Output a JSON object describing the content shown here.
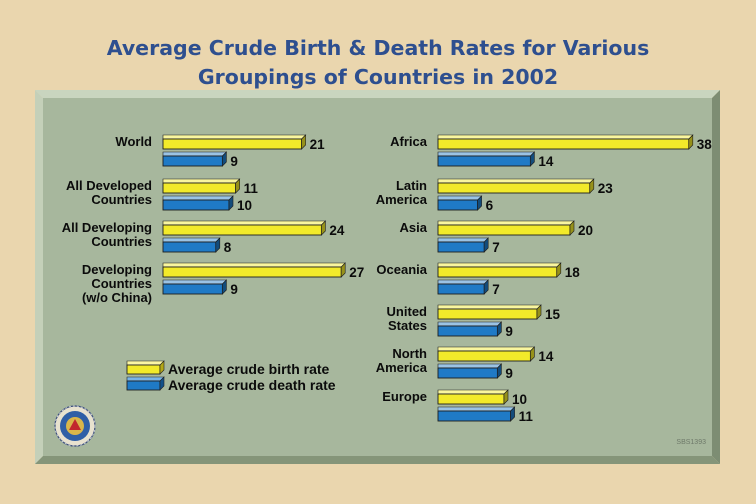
{
  "title_lines": [
    "Average Crude Birth & Death Rates for Various",
    "Groupings of Countries in 2002"
  ],
  "colors": {
    "background": "#ead6ae",
    "panel": "#a7b79d",
    "birth": "#f2ea2a",
    "death": "#1f7ac6",
    "title": "#2e4f8f"
  },
  "chart_data": {
    "type": "bar",
    "orientation": "horizontal",
    "title": "Average Crude Birth & Death Rates for Various Groupings of Countries in 2002",
    "series_names": [
      "Average crude birth rate",
      "Average crude death rate"
    ],
    "groups": [
      {
        "panel": "left",
        "rows": [
          {
            "label": [
              "World"
            ],
            "birth": 21,
            "death": 9
          },
          {
            "label": [
              "All Developed",
              "Countries"
            ],
            "birth": 11,
            "death": 10
          },
          {
            "label": [
              "All Developing",
              "Countries"
            ],
            "birth": 24,
            "death": 8
          },
          {
            "label": [
              "Developing",
              "Countries",
              "(w/o China)"
            ],
            "birth": 27,
            "death": 9
          }
        ]
      },
      {
        "panel": "right",
        "rows": [
          {
            "label": [
              "Africa"
            ],
            "birth": 38,
            "death": 14
          },
          {
            "label": [
              "Latin",
              "America"
            ],
            "birth": 23,
            "death": 6
          },
          {
            "label": [
              "Asia"
            ],
            "birth": 20,
            "death": 7
          },
          {
            "label": [
              "Oceania"
            ],
            "birth": 18,
            "death": 7
          },
          {
            "label": [
              "United",
              "States"
            ],
            "birth": 15,
            "death": 9
          },
          {
            "label": [
              "North",
              "America"
            ],
            "birth": 14,
            "death": 9
          },
          {
            "label": [
              "Europe"
            ],
            "birth": 10,
            "death": 11
          }
        ]
      }
    ]
  },
  "legend": {
    "birth_label": "Average crude birth rate",
    "death_label": "Average crude death rate"
  },
  "figure_code": "SBS1393"
}
